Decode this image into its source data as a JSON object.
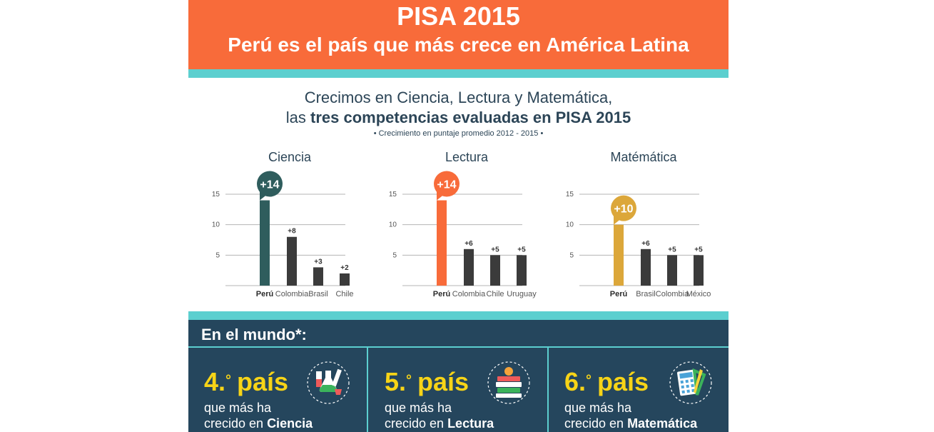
{
  "header": {
    "title": "PISA 2015",
    "headline": "Perú es el país que más crece en América Latina"
  },
  "subtitle": {
    "line1": "Crecimos en Ciencia, Lectura y Matemática,",
    "line2_prefix": "las ",
    "line2_bold": "tres competencias evaluadas en PISA 2015",
    "line3": "• Crecimiento en puntaje promedio 2012 - 2015 •"
  },
  "colors": {
    "orange": "#f86b3a",
    "teal": "#5ccfcf",
    "navy": "#25465d",
    "yellow": "#f7d417",
    "ciencia": "#2f5d5d",
    "lectura": "#f86b3a",
    "matematica": "#dca73a",
    "other_bar": "#3b3b3b"
  },
  "chart_data": [
    {
      "type": "bar",
      "title": "Ciencia",
      "categories": [
        "Perú",
        "Colombia",
        "Brasil",
        "Chile"
      ],
      "values": [
        14,
        8,
        3,
        2
      ],
      "labels": [
        "+14",
        "+8",
        "+3",
        "+2"
      ],
      "yticks": [
        "5",
        "10",
        "15"
      ],
      "ylim": [
        0,
        15
      ],
      "highlight_color": "#2f5d5d"
    },
    {
      "type": "bar",
      "title": "Lectura",
      "categories": [
        "Perú",
        "Colombia",
        "Chile",
        "Uruguay"
      ],
      "values": [
        14,
        6,
        5,
        5
      ],
      "labels": [
        "+14",
        "+6",
        "+5",
        "+5"
      ],
      "yticks": [
        "5",
        "10",
        "15"
      ],
      "ylim": [
        0,
        15
      ],
      "highlight_color": "#f86b3a"
    },
    {
      "type": "bar",
      "title": "Matémática",
      "categories": [
        "Perú",
        "Brasil",
        "Colombia",
        "México"
      ],
      "values": [
        10,
        6,
        5,
        5
      ],
      "labels": [
        "+10",
        "+6",
        "+5",
        "+5"
      ],
      "yticks": [
        "5",
        "10",
        "15"
      ],
      "ylim": [
        0,
        15
      ],
      "highlight_color": "#dca73a"
    }
  ],
  "world": {
    "title": "En el mundo*:",
    "panels": [
      {
        "rank": "4.",
        "deg": "°",
        "word": "país",
        "desc1": "que más ha",
        "desc2_prefix": "crecido en ",
        "desc2_bold": "Ciencia",
        "icon": "flask-icon"
      },
      {
        "rank": "5.",
        "deg": "°",
        "word": "país",
        "desc1": "que más ha",
        "desc2_prefix": "crecido en ",
        "desc2_bold": "Lectura",
        "icon": "books-icon"
      },
      {
        "rank": "6.",
        "deg": "°",
        "word": "país",
        "desc1": "que más ha",
        "desc2_prefix": "crecido en ",
        "desc2_bold": "Matemática",
        "icon": "calculator-icon"
      }
    ]
  }
}
